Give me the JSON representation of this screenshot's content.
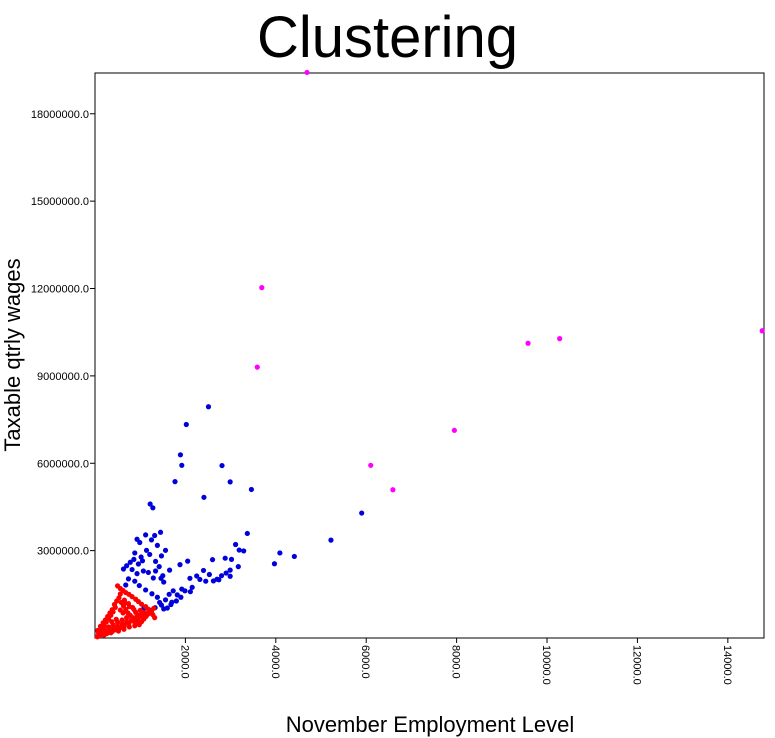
{
  "chart_data": {
    "type": "scatter",
    "title": "Clustering",
    "xlabel": "November Employment Level",
    "ylabel": "Taxable qtrly wages",
    "xlim": [
      0,
      14800
    ],
    "ylim": [
      0,
      19400000
    ],
    "xticks": [
      2000,
      4000,
      6000,
      8000,
      10000,
      12000,
      14000
    ],
    "xtick_labels": [
      "2000.0",
      "4000.0",
      "6000.0",
      "8000.0",
      "10000.0",
      "12000.0",
      "14000.0"
    ],
    "yticks": [
      3000000,
      6000000,
      9000000,
      12000000,
      15000000,
      18000000
    ],
    "ytick_labels": [
      "3000000.0",
      "6000000.0",
      "9000000.0",
      "12000000.0",
      "15000000.0",
      "18000000.0"
    ],
    "grid": false,
    "series": [
      {
        "color": "#ff00ff",
        "points": [
          [
            4690,
            19420000
          ],
          [
            3690,
            12030000
          ],
          [
            3590,
            9300000
          ],
          [
            9580,
            10120000
          ],
          [
            10280,
            10280000
          ],
          [
            14760,
            10550000
          ],
          [
            7950,
            7130000
          ],
          [
            6100,
            5930000
          ],
          [
            6590,
            5090000
          ]
        ]
      },
      {
        "color": "#0000dd",
        "points": [
          [
            2510,
            7940000
          ],
          [
            2020,
            7330000
          ],
          [
            1890,
            6290000
          ],
          [
            1920,
            5930000
          ],
          [
            2810,
            5920000
          ],
          [
            1770,
            5370000
          ],
          [
            2990,
            5360000
          ],
          [
            3460,
            5100000
          ],
          [
            2410,
            4830000
          ],
          [
            1220,
            4600000
          ],
          [
            1280,
            4470000
          ],
          [
            5900,
            4290000
          ],
          [
            5220,
            3360000
          ],
          [
            4090,
            2920000
          ],
          [
            4410,
            2800000
          ],
          [
            3970,
            2550000
          ],
          [
            3370,
            3590000
          ],
          [
            3190,
            3020000
          ],
          [
            3290,
            2990000
          ],
          [
            3110,
            3210000
          ],
          [
            2880,
            2740000
          ],
          [
            3020,
            2700000
          ],
          [
            3170,
            2450000
          ],
          [
            2990,
            2330000
          ],
          [
            2900,
            2230000
          ],
          [
            2800,
            2140000
          ],
          [
            2700,
            2020000
          ],
          [
            2530,
            2180000
          ],
          [
            2600,
            2690000
          ],
          [
            2400,
            2320000
          ],
          [
            2250,
            2130000
          ],
          [
            2100,
            2050000
          ],
          [
            2450,
            1950000
          ],
          [
            2320,
            2010000
          ],
          [
            2620,
            1960000
          ],
          [
            2740,
            2000000
          ],
          [
            2990,
            2120000
          ],
          [
            2150,
            1740000
          ],
          [
            1920,
            1680000
          ],
          [
            1730,
            1620000
          ],
          [
            2050,
            2640000
          ],
          [
            1880,
            2520000
          ],
          [
            1650,
            2330000
          ],
          [
            1500,
            2140000
          ],
          [
            1420,
            2450000
          ],
          [
            1340,
            2630000
          ],
          [
            1470,
            2820000
          ],
          [
            1560,
            3010000
          ],
          [
            1380,
            3180000
          ],
          [
            1250,
            3370000
          ],
          [
            1120,
            3540000
          ],
          [
            1320,
            3520000
          ],
          [
            1450,
            3630000
          ],
          [
            990,
            3280000
          ],
          [
            930,
            3390000
          ],
          [
            880,
            2920000
          ],
          [
            1020,
            2780000
          ],
          [
            1210,
            2870000
          ],
          [
            1140,
            3010000
          ],
          [
            1050,
            2650000
          ],
          [
            960,
            2540000
          ],
          [
            860,
            2700000
          ],
          [
            780,
            2600000
          ],
          [
            700,
            2480000
          ],
          [
            1340,
            2300000
          ],
          [
            1460,
            2050000
          ],
          [
            1520,
            1920000
          ],
          [
            1180,
            2250000
          ],
          [
            1290,
            2060000
          ],
          [
            1070,
            2300000
          ],
          [
            930,
            2210000
          ],
          [
            820,
            2350000
          ],
          [
            740,
            2030000
          ],
          [
            680,
            1820000
          ],
          [
            630,
            2370000
          ],
          [
            880,
            1950000
          ],
          [
            980,
            1800000
          ],
          [
            1120,
            1650000
          ],
          [
            1260,
            1520000
          ],
          [
            1380,
            1400000
          ],
          [
            1560,
            1310000
          ],
          [
            1700,
            1230000
          ],
          [
            1820,
            1480000
          ],
          [
            1990,
            1620000
          ],
          [
            2110,
            1590000
          ],
          [
            1640,
            1500000
          ],
          [
            1430,
            1220000
          ],
          [
            1330,
            1040000
          ],
          [
            1470,
            1130000
          ],
          [
            1520,
            1000000
          ],
          [
            1600,
            1030000
          ],
          [
            1220,
            950000
          ],
          [
            1080,
            1020000
          ],
          [
            1680,
            1150000
          ],
          [
            1800,
            1270000
          ],
          [
            1900,
            1400000
          ]
        ]
      },
      {
        "color": "#ff0000",
        "points": [
          [
            50,
            40000
          ],
          [
            100,
            80000
          ],
          [
            150,
            120000
          ],
          [
            200,
            100000
          ],
          [
            250,
            200000
          ],
          [
            300,
            250000
          ],
          [
            350,
            180000
          ],
          [
            400,
            320000
          ],
          [
            450,
            280000
          ],
          [
            500,
            400000
          ],
          [
            550,
            350000
          ],
          [
            600,
            480000
          ],
          [
            650,
            420000
          ],
          [
            700,
            550000
          ],
          [
            750,
            500000
          ],
          [
            800,
            620000
          ],
          [
            850,
            580000
          ],
          [
            900,
            700000
          ],
          [
            950,
            650000
          ],
          [
            1000,
            780000
          ],
          [
            1050,
            720000
          ],
          [
            1100,
            860000
          ],
          [
            1150,
            800000
          ],
          [
            1200,
            950000
          ],
          [
            1250,
            900000
          ],
          [
            1300,
            1020000
          ],
          [
            1120,
            1080000
          ],
          [
            1030,
            1160000
          ],
          [
            960,
            1250000
          ],
          [
            900,
            1330000
          ],
          [
            820,
            1420000
          ],
          [
            750,
            1500000
          ],
          [
            680,
            1560000
          ],
          [
            620,
            1630000
          ],
          [
            560,
            1700000
          ],
          [
            500,
            1790000
          ],
          [
            560,
            1510000
          ],
          [
            650,
            1300000
          ],
          [
            740,
            1180000
          ],
          [
            830,
            1050000
          ],
          [
            450,
            1050000
          ],
          [
            400,
            900000
          ],
          [
            350,
            780000
          ],
          [
            300,
            660000
          ],
          [
            250,
            550000
          ],
          [
            200,
            430000
          ],
          [
            150,
            330000
          ],
          [
            100,
            240000
          ],
          [
            120,
            400000
          ],
          [
            180,
            520000
          ],
          [
            230,
            620000
          ],
          [
            280,
            740000
          ],
          [
            330,
            860000
          ],
          [
            380,
            970000
          ],
          [
            430,
            1150000
          ],
          [
            480,
            1270000
          ],
          [
            530,
            1380000
          ],
          [
            580,
            1220000
          ],
          [
            630,
            1100000
          ],
          [
            680,
            980000
          ],
          [
            730,
            860000
          ],
          [
            780,
            780000
          ],
          [
            830,
            700000
          ],
          [
            880,
            600000
          ],
          [
            930,
            520000
          ],
          [
            980,
            460000
          ],
          [
            1030,
            560000
          ],
          [
            1080,
            650000
          ],
          [
            1130,
            740000
          ],
          [
            1180,
            830000
          ],
          [
            1230,
            890000
          ],
          [
            1280,
            800000
          ],
          [
            1320,
            700000
          ],
          [
            1000,
            950000
          ],
          [
            900,
            880000
          ],
          [
            700,
            700000
          ],
          [
            600,
            620000
          ],
          [
            500,
            540000
          ],
          [
            400,
            450000
          ],
          [
            300,
            380000
          ],
          [
            200,
            300000
          ],
          [
            80,
            160000
          ],
          [
            60,
            260000
          ],
          [
            140,
            180000
          ],
          [
            260,
            150000
          ],
          [
            380,
            220000
          ],
          [
            520,
            240000
          ],
          [
            640,
            300000
          ],
          [
            760,
            380000
          ],
          [
            880,
            420000
          ],
          [
            620,
            860000
          ],
          [
            560,
            960000
          ],
          [
            470,
            640000
          ],
          [
            370,
            560000
          ],
          [
            1180,
            990000
          ],
          [
            1060,
            880000
          ],
          [
            960,
            780000
          ],
          [
            860,
            980000
          ],
          [
            760,
            1080000
          ],
          [
            660,
            1200000
          ]
        ]
      }
    ]
  }
}
